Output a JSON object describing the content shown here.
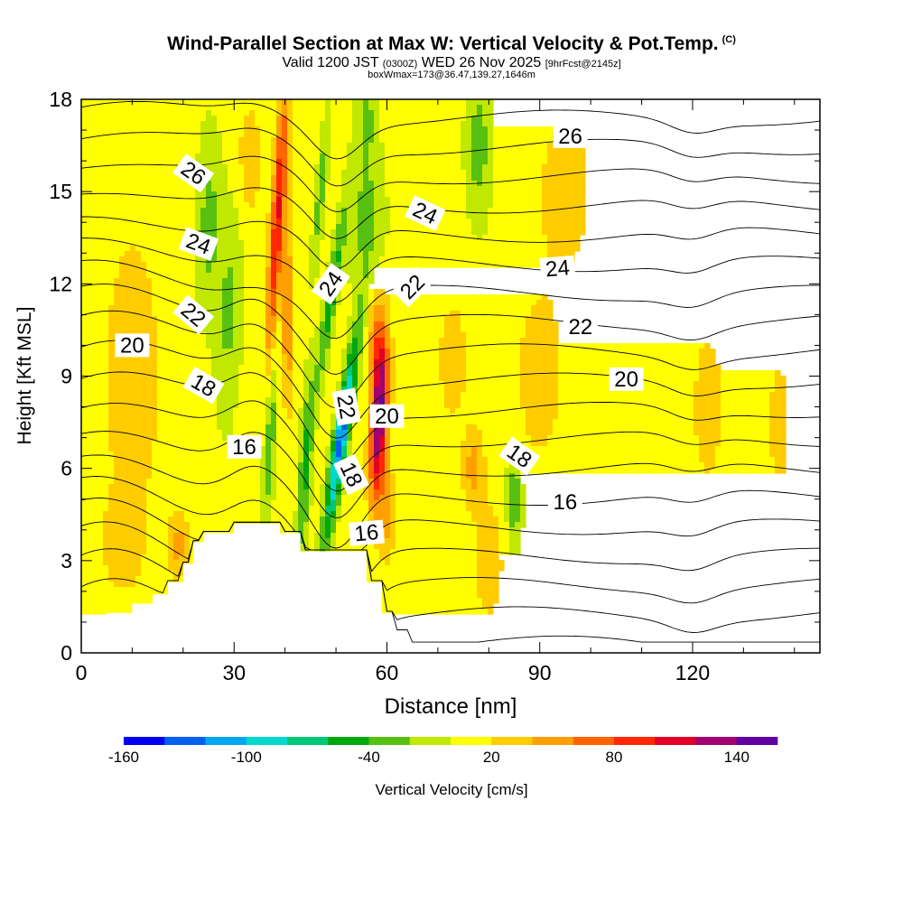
{
  "header": {
    "title": "Wind-Parallel Section at Max W: Vertical Velocity & Pot.Temp.",
    "copyright": "(C)",
    "valid_prefix": "Valid 1200 JST",
    "valid_utc": "(0300Z)",
    "valid_date": "WED 26 Nov 2025",
    "forecast": "[9hrFcst@2145z]",
    "boxinfo": "boxWmax=173@36.47,139.27,1646m"
  },
  "chart_data": {
    "type": "contour-cross-section",
    "xlabel": "Distance [nm]",
    "ylabel": "Height [Kft MSL]",
    "xlim": [
      0,
      145
    ],
    "ylim": [
      0,
      18
    ],
    "x_ticks": [
      0,
      30,
      60,
      90,
      120
    ],
    "y_ticks": [
      0,
      3,
      6,
      9,
      12,
      15,
      18
    ],
    "colorbar": {
      "label": "Vertical Velocity [cm/s]",
      "tick_labels": [
        -160,
        -100,
        -40,
        20,
        80,
        140
      ],
      "bins": [
        -160,
        -140,
        -120,
        -100,
        -80,
        -60,
        -40,
        -20,
        0,
        20,
        40,
        60,
        80,
        100,
        120,
        140,
        160
      ],
      "colors": [
        "#0000ee",
        "#0060f0",
        "#00a8f0",
        "#00d8d0",
        "#00c878",
        "#00a810",
        "#58c010",
        "#c0e800",
        "#ffff00",
        "#ffcc00",
        "#ffa000",
        "#ff6400",
        "#ff2800",
        "#e00028",
        "#a00070",
        "#6000a0"
      ]
    },
    "terrain_kft": {
      "x": [
        0,
        5,
        5,
        10,
        10,
        14,
        14,
        17,
        17,
        20,
        20,
        22,
        22,
        24,
        24,
        27,
        27,
        30,
        30,
        34,
        34,
        39,
        39,
        43,
        43,
        56,
        56,
        59,
        59,
        61,
        61,
        64,
        64,
        145
      ],
      "h": [
        1.0,
        1.0,
        1.3,
        1.3,
        1.6,
        1.6,
        1.9,
        1.9,
        2.3,
        2.3,
        2.9,
        2.9,
        3.6,
        3.6,
        3.9,
        3.9,
        3.9,
        3.9,
        4.2,
        4.2,
        4.2,
        4.2,
        3.9,
        3.9,
        3.3,
        3.3,
        2.3,
        2.3,
        1.3,
        1.3,
        0.7,
        0.7,
        0.3,
        0.3
      ]
    },
    "theta_label_values": [
      "26",
      "26",
      "24",
      "24",
      "24",
      "24",
      "22",
      "22",
      "22",
      "20",
      "20",
      "20",
      "18",
      "18",
      "18",
      "16",
      "16",
      "16",
      "22"
    ]
  }
}
